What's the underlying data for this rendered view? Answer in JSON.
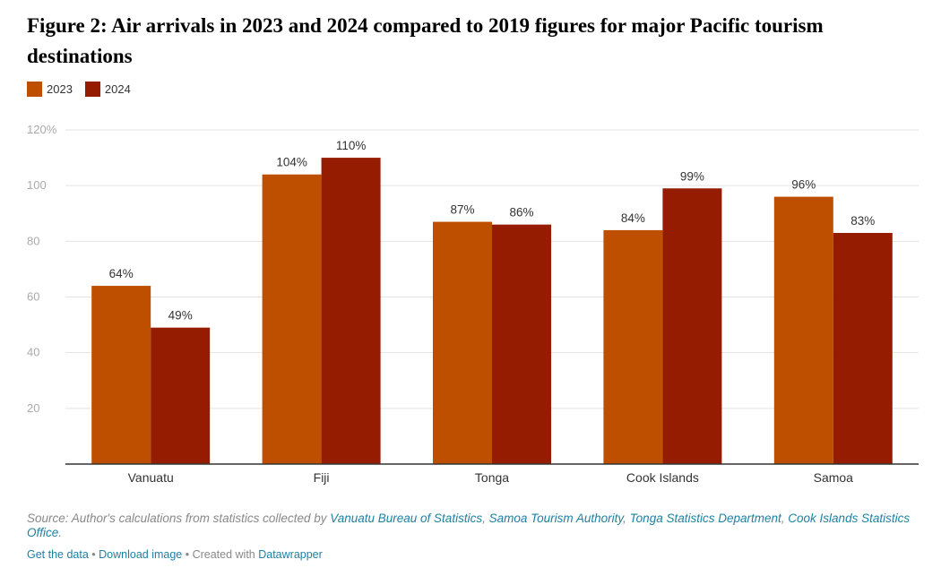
{
  "title": "Figure 2: Air arrivals in 2023 and 2024 compared to 2019 figures for major Pacific tourism destinations",
  "chart_data": {
    "type": "bar",
    "title": "Figure 2: Air arrivals in 2023 and 2024 compared to 2019 figures for major Pacific tourism destinations",
    "categories": [
      "Vanuatu",
      "Fiji",
      "Tonga",
      "Cook Islands",
      "Samoa"
    ],
    "series": [
      {
        "name": "2023",
        "color": "#bf4f00",
        "values": [
          64,
          104,
          87,
          84,
          96
        ],
        "labels": [
          "64%",
          "104%",
          "87%",
          "84%",
          "96%"
        ]
      },
      {
        "name": "2024",
        "color": "#951c00",
        "values": [
          49,
          110,
          86,
          99,
          83
        ],
        "labels": [
          "49%",
          "110%",
          "86%",
          "99%",
          "83%"
        ]
      }
    ],
    "ylim": [
      0,
      120
    ],
    "yticks": [
      20,
      40,
      60,
      80,
      100,
      120
    ],
    "ytick_labels": [
      "20",
      "40",
      "60",
      "80",
      "100",
      "120%"
    ],
    "grid": true,
    "legend_position": "top-left",
    "xlabel": "",
    "ylabel": ""
  },
  "source": {
    "prefix": "Source: Author's calculations from statistics collected by ",
    "links": [
      "Vanuatu Bureau of Statistics",
      "Samoa Tourism Authority",
      "Tonga Statistics Department",
      "Cook Islands Statistics Office"
    ],
    "sep": ", ",
    "end": "."
  },
  "footer": {
    "get_data": "Get the data",
    "download": "Download image",
    "dot": " • ",
    "created_with": "Created with ",
    "tool": "Datawrapper"
  }
}
